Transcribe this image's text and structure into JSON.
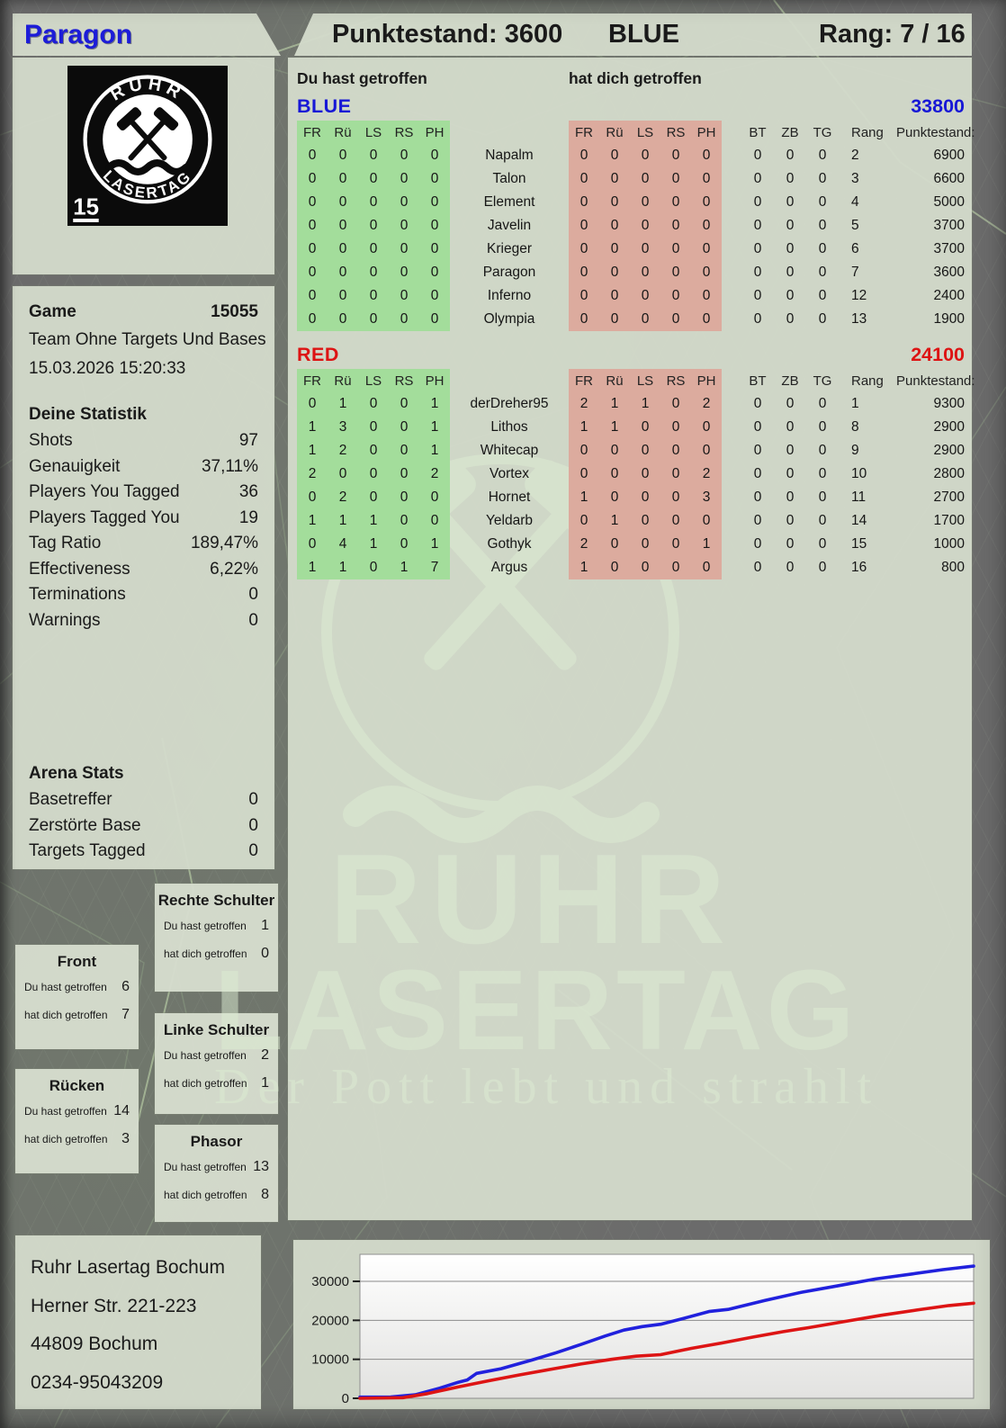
{
  "header": {
    "player": "Paragon",
    "score_label": "Punktestand: 3600",
    "team": "BLUE",
    "rank_label": "Rang: 7 / 16"
  },
  "logo": {
    "top_text": "RUHR",
    "bottom_text": "LASERTAG",
    "badge": "15"
  },
  "game": {
    "label": "Game",
    "number": "15055",
    "mode": "Team Ohne Targets Und Bases",
    "datetime": "15.03.2026 15:20:33"
  },
  "your_stats": {
    "title": "Deine Statistik",
    "rows": [
      {
        "label": "Shots",
        "value": "97"
      },
      {
        "label": "Genauigkeit",
        "value": "37,11%"
      },
      {
        "label": "Players You Tagged",
        "value": "36"
      },
      {
        "label": "Players Tagged You",
        "value": "19"
      },
      {
        "label": "Tag Ratio",
        "value": "189,47%"
      },
      {
        "label": "Effectiveness",
        "value": "6,22%"
      },
      {
        "label": "Terminations",
        "value": "0"
      },
      {
        "label": "Warnings",
        "value": "0"
      }
    ]
  },
  "arena_stats": {
    "title": "Arena Stats",
    "rows": [
      {
        "label": "Basetreffer",
        "value": "0"
      },
      {
        "label": "Zerstörte Base",
        "value": "0"
      },
      {
        "label": "Targets Tagged",
        "value": "0"
      }
    ]
  },
  "scoreboard": {
    "left_header": "Du hast getroffen",
    "right_header": "hat dich getroffen",
    "hit_columns": [
      "FR",
      "Rü",
      "LS",
      "RS",
      "PH"
    ],
    "extra_columns": [
      "BT",
      "ZB",
      "TG",
      "Rang",
      "Punktestand:"
    ],
    "teams": [
      {
        "name": "BLUE",
        "color": "#1717d6",
        "total": "33800",
        "players": [
          {
            "name": "Napalm",
            "you": [
              0,
              0,
              0,
              0,
              0
            ],
            "them": [
              0,
              0,
              0,
              0,
              0
            ],
            "bt": 0,
            "zb": 0,
            "tg": 0,
            "rang": 2,
            "score": 6900
          },
          {
            "name": "Talon",
            "you": [
              0,
              0,
              0,
              0,
              0
            ],
            "them": [
              0,
              0,
              0,
              0,
              0
            ],
            "bt": 0,
            "zb": 0,
            "tg": 0,
            "rang": 3,
            "score": 6600
          },
          {
            "name": "Element",
            "you": [
              0,
              0,
              0,
              0,
              0
            ],
            "them": [
              0,
              0,
              0,
              0,
              0
            ],
            "bt": 0,
            "zb": 0,
            "tg": 0,
            "rang": 4,
            "score": 5000
          },
          {
            "name": "Javelin",
            "you": [
              0,
              0,
              0,
              0,
              0
            ],
            "them": [
              0,
              0,
              0,
              0,
              0
            ],
            "bt": 0,
            "zb": 0,
            "tg": 0,
            "rang": 5,
            "score": 3700
          },
          {
            "name": "Krieger",
            "you": [
              0,
              0,
              0,
              0,
              0
            ],
            "them": [
              0,
              0,
              0,
              0,
              0
            ],
            "bt": 0,
            "zb": 0,
            "tg": 0,
            "rang": 6,
            "score": 3700
          },
          {
            "name": "Paragon",
            "you": [
              0,
              0,
              0,
              0,
              0
            ],
            "them": [
              0,
              0,
              0,
              0,
              0
            ],
            "bt": 0,
            "zb": 0,
            "tg": 0,
            "rang": 7,
            "score": 3600
          },
          {
            "name": "Inferno",
            "you": [
              0,
              0,
              0,
              0,
              0
            ],
            "them": [
              0,
              0,
              0,
              0,
              0
            ],
            "bt": 0,
            "zb": 0,
            "tg": 0,
            "rang": 12,
            "score": 2400
          },
          {
            "name": "Olympia",
            "you": [
              0,
              0,
              0,
              0,
              0
            ],
            "them": [
              0,
              0,
              0,
              0,
              0
            ],
            "bt": 0,
            "zb": 0,
            "tg": 0,
            "rang": 13,
            "score": 1900
          }
        ]
      },
      {
        "name": "RED",
        "color": "#dd1313",
        "total": "24100",
        "players": [
          {
            "name": "derDreher95",
            "you": [
              0,
              1,
              0,
              0,
              1
            ],
            "them": [
              2,
              1,
              1,
              0,
              2
            ],
            "bt": 0,
            "zb": 0,
            "tg": 0,
            "rang": 1,
            "score": 9300
          },
          {
            "name": "Lithos",
            "you": [
              1,
              3,
              0,
              0,
              1
            ],
            "them": [
              1,
              1,
              0,
              0,
              0
            ],
            "bt": 0,
            "zb": 0,
            "tg": 0,
            "rang": 8,
            "score": 2900
          },
          {
            "name": "Whitecap",
            "you": [
              1,
              2,
              0,
              0,
              1
            ],
            "them": [
              0,
              0,
              0,
              0,
              0
            ],
            "bt": 0,
            "zb": 0,
            "tg": 0,
            "rang": 9,
            "score": 2900
          },
          {
            "name": "Vortex",
            "you": [
              2,
              0,
              0,
              0,
              2
            ],
            "them": [
              0,
              0,
              0,
              0,
              2
            ],
            "bt": 0,
            "zb": 0,
            "tg": 0,
            "rang": 10,
            "score": 2800
          },
          {
            "name": "Hornet",
            "you": [
              0,
              2,
              0,
              0,
              0
            ],
            "them": [
              1,
              0,
              0,
              0,
              3
            ],
            "bt": 0,
            "zb": 0,
            "tg": 0,
            "rang": 11,
            "score": 2700
          },
          {
            "name": "Yeldarb",
            "you": [
              1,
              1,
              1,
              0,
              0
            ],
            "them": [
              0,
              1,
              0,
              0,
              0
            ],
            "bt": 0,
            "zb": 0,
            "tg": 0,
            "rang": 14,
            "score": 1700
          },
          {
            "name": "Gothyk",
            "you": [
              0,
              4,
              1,
              0,
              1
            ],
            "them": [
              2,
              0,
              0,
              0,
              1
            ],
            "bt": 0,
            "zb": 0,
            "tg": 0,
            "rang": 15,
            "score": 1000
          },
          {
            "name": "Argus",
            "you": [
              1,
              1,
              0,
              1,
              7
            ],
            "them": [
              1,
              0,
              0,
              0,
              0
            ],
            "bt": 0,
            "zb": 0,
            "tg": 0,
            "rang": 16,
            "score": 800
          }
        ]
      }
    ]
  },
  "hit_zone_labels": {
    "you": "Du hast getroffen",
    "them": "hat dich getroffen"
  },
  "hit_zones": [
    {
      "title": "Front",
      "you": 6,
      "them": 7
    },
    {
      "title": "Rücken",
      "you": 14,
      "them": 3
    },
    {
      "title": "Rechte Schulter",
      "you": 1,
      "them": 0
    },
    {
      "title": "Linke Schulter",
      "you": 2,
      "them": 1
    },
    {
      "title": "Phasor",
      "you": 13,
      "them": 8
    }
  ],
  "watermark": {
    "line1": "RUHR",
    "line2": "LASERTAG",
    "tagline": "Der Pott lebt und strahlt"
  },
  "address": {
    "lines": [
      "Ruhr Lasertag Bochum",
      "Herner Str. 221-223",
      "44809 Bochum",
      "0234-95043209"
    ]
  },
  "colors": {
    "green_block": "#a3dd9b",
    "red_block": "#dcab9e",
    "blue_team": "#1717d6",
    "red_team": "#dd1313"
  },
  "chart_data": {
    "type": "line",
    "title": "",
    "xlabel": "",
    "ylabel": "",
    "yticks": [
      0,
      10000,
      20000,
      30000
    ],
    "ylim": [
      0,
      37000
    ],
    "grid": true,
    "legend": false,
    "series": [
      {
        "name": "BLUE",
        "color": "#2121dd",
        "points": [
          [
            0,
            300
          ],
          [
            0.05,
            350
          ],
          [
            0.09,
            900
          ],
          [
            0.13,
            2600
          ],
          [
            0.16,
            4100
          ],
          [
            0.175,
            4700
          ],
          [
            0.19,
            6400
          ],
          [
            0.23,
            7600
          ],
          [
            0.28,
            9800
          ],
          [
            0.32,
            11700
          ],
          [
            0.36,
            13800
          ],
          [
            0.4,
            16000
          ],
          [
            0.43,
            17500
          ],
          [
            0.46,
            18400
          ],
          [
            0.49,
            19000
          ],
          [
            0.53,
            20600
          ],
          [
            0.57,
            22300
          ],
          [
            0.6,
            22800
          ],
          [
            0.66,
            25100
          ],
          [
            0.72,
            27200
          ],
          [
            0.78,
            28900
          ],
          [
            0.84,
            30600
          ],
          [
            0.9,
            31900
          ],
          [
            0.95,
            33000
          ],
          [
            1,
            33900
          ]
        ]
      },
      {
        "name": "RED",
        "color": "#dd1414",
        "points": [
          [
            0,
            0
          ],
          [
            0.07,
            150
          ],
          [
            0.11,
            1200
          ],
          [
            0.16,
            2900
          ],
          [
            0.21,
            4500
          ],
          [
            0.26,
            6000
          ],
          [
            0.31,
            7400
          ],
          [
            0.36,
            8800
          ],
          [
            0.41,
            10000
          ],
          [
            0.45,
            10800
          ],
          [
            0.49,
            11200
          ],
          [
            0.54,
            12800
          ],
          [
            0.59,
            14200
          ],
          [
            0.64,
            15700
          ],
          [
            0.69,
            17100
          ],
          [
            0.73,
            18100
          ],
          [
            0.79,
            19700
          ],
          [
            0.85,
            21300
          ],
          [
            0.91,
            22700
          ],
          [
            0.96,
            23800
          ],
          [
            1,
            24400
          ]
        ]
      }
    ]
  }
}
